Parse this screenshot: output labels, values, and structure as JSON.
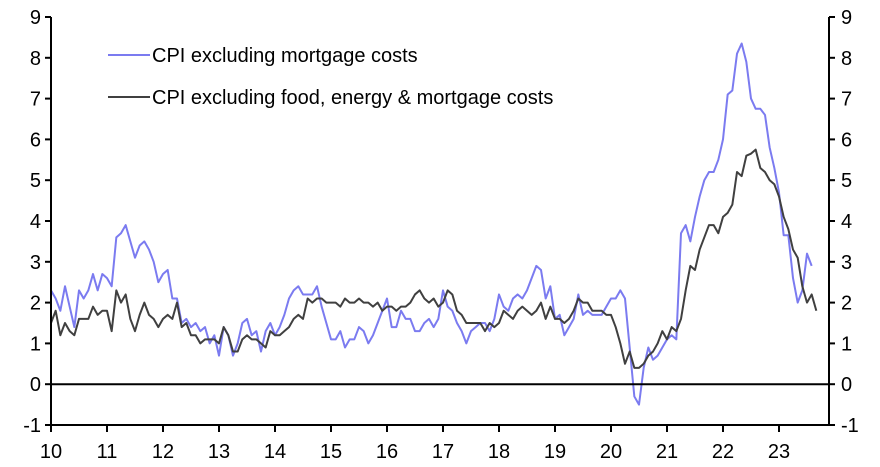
{
  "chart_data": {
    "type": "line",
    "title": "",
    "xlabel": "",
    "ylabel": "",
    "x_start": "2010-01",
    "x_end": "2023-09",
    "x_frequency": "monthly",
    "xlim": [
      2010,
      2024
    ],
    "ylim": [
      -1,
      9
    ],
    "x_tick_labels": [
      "10",
      "11",
      "12",
      "13",
      "14",
      "15",
      "16",
      "17",
      "18",
      "19",
      "20",
      "21",
      "22",
      "23"
    ],
    "y_tick_labels": [
      "-1",
      "0",
      "1",
      "2",
      "3",
      "4",
      "5",
      "6",
      "7",
      "8",
      "9"
    ],
    "y_ticks": [
      -1,
      0,
      1,
      2,
      3,
      4,
      5,
      6,
      7,
      8,
      9
    ],
    "x_ticks": [
      2010,
      2011,
      2012,
      2013,
      2014,
      2015,
      2016,
      2017,
      2018,
      2019,
      2020,
      2021,
      2022,
      2023
    ],
    "grid": false,
    "zero_line": true,
    "dual_y_axis": true,
    "legend_position": "top-left",
    "series": [
      {
        "name": "CPI excluding mortgage costs",
        "color": "#7b7bf0",
        "values": [
          2.3,
          2.1,
          1.8,
          2.4,
          1.9,
          1.4,
          2.3,
          2.1,
          2.3,
          2.7,
          2.3,
          2.7,
          2.6,
          2.4,
          3.6,
          3.7,
          3.9,
          3.5,
          3.1,
          3.4,
          3.5,
          3.3,
          3.0,
          2.5,
          2.7,
          2.8,
          2.1,
          2.1,
          1.5,
          1.6,
          1.4,
          1.5,
          1.3,
          1.4,
          1.0,
          1.2,
          0.7,
          1.4,
          1.2,
          0.7,
          1.0,
          1.5,
          1.6,
          1.2,
          1.3,
          0.8,
          1.3,
          1.5,
          1.2,
          1.4,
          1.7,
          2.1,
          2.3,
          2.4,
          2.2,
          2.2,
          2.2,
          2.4,
          1.9,
          1.5,
          1.1,
          1.1,
          1.3,
          0.9,
          1.1,
          1.1,
          1.4,
          1.3,
          1.0,
          1.2,
          1.5,
          1.8,
          2.1,
          1.4,
          1.4,
          1.8,
          1.6,
          1.6,
          1.3,
          1.3,
          1.5,
          1.6,
          1.4,
          1.6,
          2.3,
          1.9,
          1.8,
          1.5,
          1.3,
          1.0,
          1.3,
          1.4,
          1.5,
          1.5,
          1.3,
          1.6,
          2.2,
          1.9,
          1.8,
          2.1,
          2.2,
          2.1,
          2.3,
          2.6,
          2.9,
          2.8,
          2.1,
          2.4,
          1.6,
          1.7,
          1.2,
          1.4,
          1.6,
          2.2,
          1.7,
          1.8,
          1.7,
          1.7,
          1.7,
          1.9,
          2.1,
          2.1,
          2.3,
          2.1,
          0.9,
          -0.3,
          -0.5,
          0.4,
          0.9,
          0.6,
          0.7,
          0.9,
          1.1,
          1.2,
          1.1,
          3.7,
          3.9,
          3.5,
          4.1,
          4.6,
          5.0,
          5.2,
          5.2,
          5.5,
          6.0,
          7.1,
          7.2,
          8.1,
          8.35,
          7.9,
          7.0,
          6.75,
          6.75,
          6.6,
          5.8,
          5.3,
          4.7,
          3.65,
          3.65,
          2.6,
          2.0,
          2.3,
          3.2,
          2.9
        ]
      },
      {
        "name": "CPI excluding food, energy & mortgage costs",
        "color": "#404040",
        "values": [
          1.5,
          1.8,
          1.2,
          1.5,
          1.3,
          1.2,
          1.6,
          1.6,
          1.6,
          1.9,
          1.7,
          1.8,
          1.8,
          1.3,
          2.3,
          2.0,
          2.2,
          1.6,
          1.3,
          1.7,
          2.0,
          1.7,
          1.6,
          1.4,
          1.6,
          1.7,
          1.6,
          2.0,
          1.4,
          1.5,
          1.2,
          1.2,
          1.0,
          1.1,
          1.1,
          1.1,
          1.0,
          1.4,
          1.2,
          0.8,
          0.8,
          1.1,
          1.2,
          1.1,
          1.1,
          1.0,
          0.9,
          1.3,
          1.2,
          1.2,
          1.3,
          1.4,
          1.6,
          1.7,
          1.6,
          2.1,
          2.0,
          2.1,
          2.1,
          2.0,
          2.0,
          2.0,
          1.9,
          2.1,
          2.0,
          2.0,
          2.1,
          2.0,
          2.0,
          1.9,
          2.0,
          1.8,
          1.9,
          1.9,
          1.8,
          1.9,
          1.9,
          2.0,
          2.2,
          2.3,
          2.1,
          2.0,
          2.1,
          1.9,
          2.0,
          2.3,
          2.2,
          1.8,
          1.7,
          1.5,
          1.5,
          1.5,
          1.5,
          1.3,
          1.5,
          1.4,
          1.5,
          1.8,
          1.7,
          1.6,
          1.8,
          1.9,
          1.8,
          1.7,
          1.8,
          2.0,
          1.6,
          1.9,
          1.6,
          1.6,
          1.5,
          1.6,
          1.8,
          2.1,
          2.0,
          2.0,
          1.8,
          1.8,
          1.8,
          1.7,
          1.7,
          1.4,
          1.0,
          0.5,
          0.8,
          0.4,
          0.4,
          0.5,
          0.7,
          0.8,
          1.0,
          1.3,
          1.1,
          1.4,
          1.3,
          1.6,
          2.3,
          2.9,
          2.8,
          3.3,
          3.6,
          3.9,
          3.9,
          3.7,
          4.1,
          4.2,
          4.4,
          5.2,
          5.1,
          5.6,
          5.65,
          5.75,
          5.3,
          5.2,
          5.0,
          4.9,
          4.6,
          4.1,
          3.8,
          3.3,
          3.1,
          2.4,
          2.0,
          2.2,
          1.8
        ]
      }
    ]
  },
  "legend": {
    "items": [
      "CPI excluding mortgage costs",
      "CPI excluding food, energy & mortgage costs"
    ]
  }
}
